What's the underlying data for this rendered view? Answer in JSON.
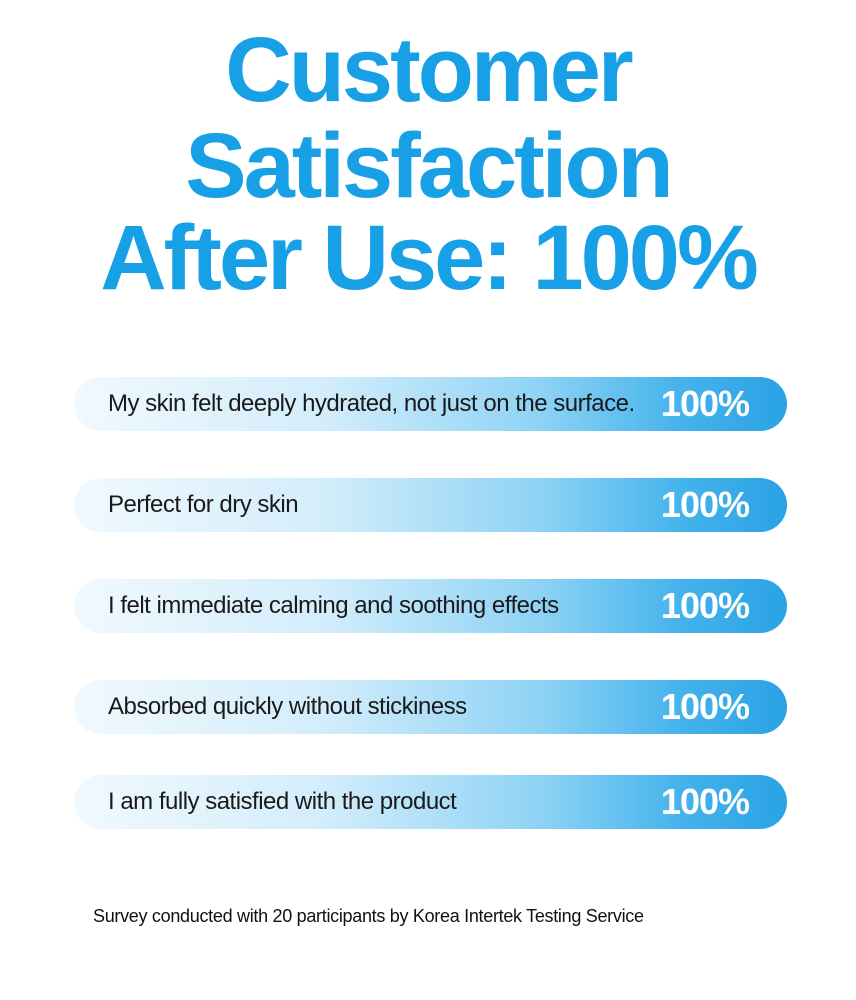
{
  "title": {
    "lines": [
      "Customer",
      "Satisfaction",
      "After Use: 100%"
    ]
  },
  "items": [
    {
      "label": "My skin felt deeply hydrated, not just on the surface.",
      "value": "100%"
    },
    {
      "label": "Perfect for dry skin",
      "value": "100%"
    },
    {
      "label": "I felt immediate calming and soothing effects",
      "value": "100%"
    },
    {
      "label": "Absorbed quickly without stickiness",
      "value": "100%"
    },
    {
      "label": "I am fully satisfied with the product",
      "value": "100%"
    }
  ],
  "footnote": "Survey conducted with 20 participants by Korea Intertek Testing Service"
}
